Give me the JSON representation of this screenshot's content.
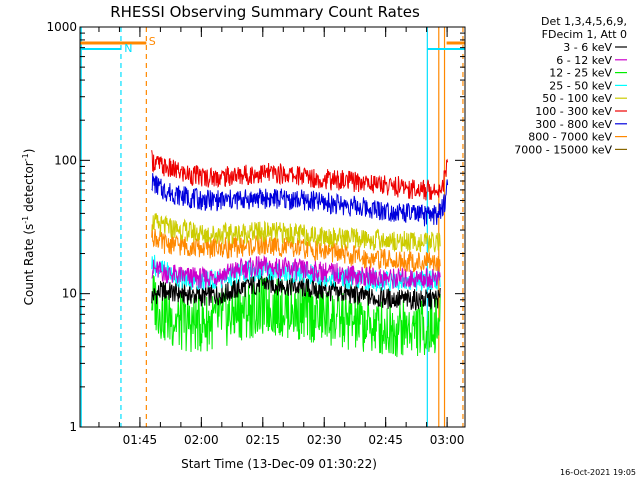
{
  "chart_data": {
    "type": "line",
    "title": "RHESSI Observing Summary Count Rates",
    "xlabel": "Start Time (13-Dec-09 01:30:22)",
    "ylabel_main": "Count Rate (s",
    "ylabel_sup1": "-1",
    "ylabel_mid": " detector",
    "ylabel_sup2": "-1",
    "ylabel_end": ")",
    "y_scale": "log",
    "ylim": [
      1,
      1000
    ],
    "xlim_minutes": [
      0,
      94
    ],
    "y_ticks": [
      {
        "value": 1,
        "label": "1"
      },
      {
        "value": 10,
        "label": "10"
      },
      {
        "value": 100,
        "label": "100"
      },
      {
        "value": 1000,
        "label": "1000"
      }
    ],
    "x_ticks": [
      {
        "minute": 14.63,
        "label": "01:45"
      },
      {
        "minute": 29.63,
        "label": "02:00"
      },
      {
        "minute": 44.63,
        "label": "02:15"
      },
      {
        "minute": 59.63,
        "label": "02:30"
      },
      {
        "minute": 74.63,
        "label": "02:45"
      },
      {
        "minute": 89.63,
        "label": "03:00"
      }
    ],
    "legend_header": [
      "Det 1,3,4,5,6,9,",
      "FDecim 1, Att 0"
    ],
    "legend_placement": "right",
    "series": [
      {
        "name": "3 - 6 keV",
        "color": "#000000",
        "values": [
          [
            17.5,
            9.5
          ],
          [
            20,
            10.5
          ],
          [
            25,
            10
          ],
          [
            30,
            9.5
          ],
          [
            35,
            10
          ],
          [
            40,
            11.2
          ],
          [
            45,
            12
          ],
          [
            50,
            11.5
          ],
          [
            55,
            11
          ],
          [
            60,
            10.5
          ],
          [
            65,
            10
          ],
          [
            70,
            9.5
          ],
          [
            75,
            9.2
          ],
          [
            80,
            9
          ],
          [
            85,
            9
          ],
          [
            88,
            9.2
          ]
        ]
      },
      {
        "name": "6 - 12 keV",
        "color": "#cc00cc",
        "values": [
          [
            17.5,
            15.5
          ],
          [
            20,
            14.5
          ],
          [
            25,
            13.5
          ],
          [
            30,
            13
          ],
          [
            35,
            14
          ],
          [
            40,
            15.5
          ],
          [
            45,
            16
          ],
          [
            50,
            15.5
          ],
          [
            55,
            15
          ],
          [
            60,
            14.5
          ],
          [
            65,
            14
          ],
          [
            70,
            13.5
          ],
          [
            75,
            13
          ],
          [
            80,
            13
          ],
          [
            85,
            13
          ],
          [
            88,
            13.5
          ]
        ]
      },
      {
        "name": "12 - 25 keV",
        "color": "#00ee00",
        "values": [
          [
            17.5,
            9.5
          ],
          [
            19,
            8
          ],
          [
            21,
            6.8
          ],
          [
            25,
            6
          ],
          [
            30,
            6
          ],
          [
            35,
            6.5
          ],
          [
            40,
            7.5
          ],
          [
            45,
            8
          ],
          [
            50,
            7.8
          ],
          [
            55,
            7.2
          ],
          [
            60,
            6.8
          ],
          [
            65,
            6.2
          ],
          [
            70,
            5.8
          ],
          [
            75,
            5.5
          ],
          [
            80,
            5.5
          ],
          [
            85,
            5.5
          ],
          [
            88,
            6
          ]
        ]
      },
      {
        "name": "25 - 50 keV",
        "color": "#00ffff",
        "values": [
          [
            17.5,
            17
          ],
          [
            20,
            15
          ],
          [
            25,
            13
          ],
          [
            30,
            12.5
          ],
          [
            35,
            13
          ],
          [
            40,
            14.5
          ],
          [
            45,
            15
          ],
          [
            50,
            14.5
          ],
          [
            55,
            14
          ],
          [
            60,
            13.5
          ],
          [
            65,
            13
          ],
          [
            70,
            12.5
          ],
          [
            75,
            12.5
          ],
          [
            80,
            12.5
          ],
          [
            85,
            12.5
          ],
          [
            88,
            13
          ]
        ]
      },
      {
        "name": "50 - 100 keV",
        "color": "#cccc00",
        "values": [
          [
            17.5,
            35
          ],
          [
            20,
            32
          ],
          [
            25,
            30
          ],
          [
            30,
            28
          ],
          [
            35,
            28
          ],
          [
            40,
            28.5
          ],
          [
            45,
            29
          ],
          [
            50,
            28.5
          ],
          [
            55,
            27.5
          ],
          [
            60,
            27
          ],
          [
            65,
            26
          ],
          [
            70,
            25.5
          ],
          [
            75,
            25
          ],
          [
            80,
            24.5
          ],
          [
            85,
            24
          ],
          [
            88,
            25
          ]
        ]
      },
      {
        "name": "100 - 300 keV",
        "color": "#ee0000",
        "values": [
          [
            17.5,
            100
          ],
          [
            20,
            90
          ],
          [
            25,
            80
          ],
          [
            30,
            75
          ],
          [
            35,
            75
          ],
          [
            40,
            78
          ],
          [
            45,
            80
          ],
          [
            50,
            79
          ],
          [
            55,
            76
          ],
          [
            60,
            72
          ],
          [
            65,
            70
          ],
          [
            70,
            68
          ],
          [
            75,
            65
          ],
          [
            80,
            62
          ],
          [
            85,
            60
          ],
          [
            88,
            62
          ],
          [
            89,
            72
          ],
          [
            89.8,
            100
          ]
        ]
      },
      {
        "name": "300 - 800 keV",
        "color": "#0000dd",
        "values": [
          [
            17.5,
            70
          ],
          [
            20,
            60
          ],
          [
            25,
            54
          ],
          [
            30,
            50
          ],
          [
            35,
            50
          ],
          [
            40,
            51
          ],
          [
            45,
            52
          ],
          [
            50,
            51
          ],
          [
            55,
            50
          ],
          [
            60,
            48
          ],
          [
            65,
            46
          ],
          [
            70,
            44
          ],
          [
            75,
            42
          ],
          [
            80,
            40
          ],
          [
            85,
            38
          ],
          [
            88,
            40
          ],
          [
            89,
            48
          ],
          [
            89.8,
            70
          ]
        ]
      },
      {
        "name": "800 - 7000 keV",
        "color": "#ff8800",
        "values": [
          [
            17.5,
            28
          ],
          [
            20,
            24
          ],
          [
            25,
            23
          ],
          [
            30,
            22
          ],
          [
            35,
            22
          ],
          [
            40,
            22.5
          ],
          [
            45,
            23
          ],
          [
            50,
            22.5
          ],
          [
            55,
            21.5
          ],
          [
            60,
            21
          ],
          [
            65,
            19.5
          ],
          [
            70,
            18.5
          ],
          [
            75,
            18
          ],
          [
            80,
            17.5
          ],
          [
            85,
            17
          ],
          [
            88,
            17.5
          ]
        ]
      },
      {
        "name": "7000 - 15000 keV",
        "color": "#886600",
        "values": []
      }
    ],
    "annotations": [
      {
        "label": "N",
        "color": "#00e0ff"
      },
      {
        "label": "S",
        "color": "#ff8800"
      }
    ]
  },
  "timestamp": "16-Oct-2021 19:05"
}
